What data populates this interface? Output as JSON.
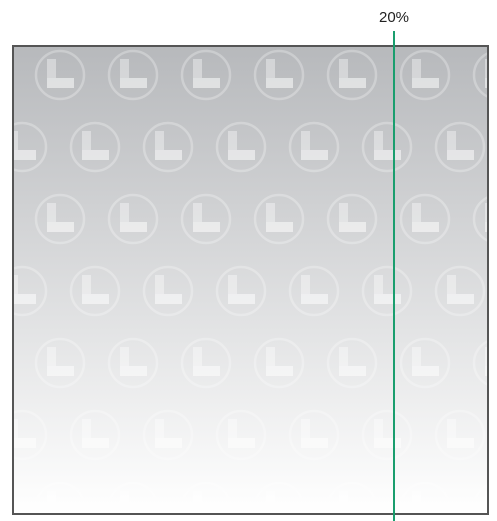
{
  "marker": {
    "label": "20%",
    "position_fraction": 0.2,
    "line_color": "#1a9e6e"
  },
  "swatch": {
    "pattern_icon": "clock-icon",
    "gradient_top_color": "#b7b9bc",
    "gradient_bottom_color": "#ffffff",
    "border_color": "#555555"
  }
}
